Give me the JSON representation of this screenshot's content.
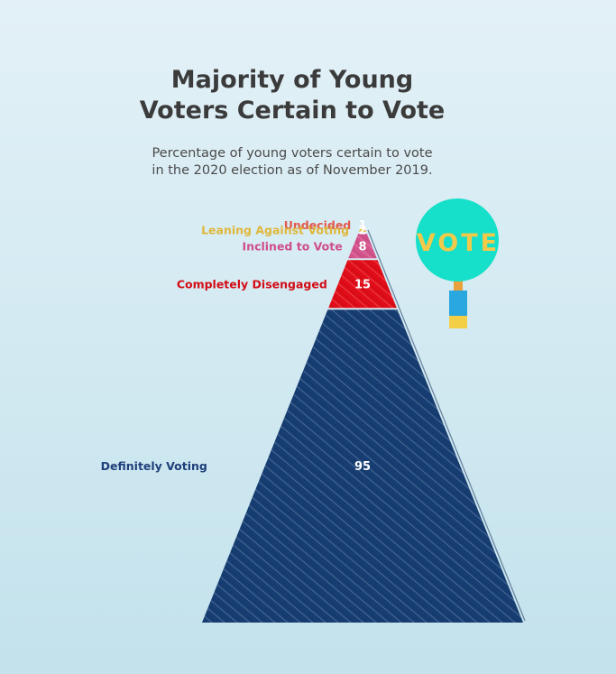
{
  "title": "Majority of Young\nVoters Certain to Vote",
  "subtitle": "Percentage of young voters certain to vote\nin the 2020 election as of November 2019.",
  "sign_text": "VOTE",
  "colors": {
    "sign": "#16e0c9",
    "sign_text": "#f3c94a",
    "handle_top": "#e9a23b",
    "handle_mid": "#29a7df",
    "handle_bottom": "#f2cf44"
  },
  "chart_data": {
    "type": "pyramid",
    "title": "Majority of Young Voters Certain to Vote",
    "subtitle": "Percentage of young voters certain to vote in the 2020 election as of November 2019.",
    "categories": [
      "Undecided",
      "Leaning Against Voting",
      "Inclined to Vote",
      "Completely Disengaged",
      "Definitely Voting"
    ],
    "values": [
      1,
      2,
      8,
      15,
      95
    ],
    "colors": [
      "#ec6b5c",
      "#e4bf3b",
      "#d4538c",
      "#e10d18",
      "#173e73"
    ],
    "label_colors": [
      "#e0584f",
      "#dfb73a",
      "#cf4d8c",
      "#d30c16",
      "#1e3f7a"
    ],
    "legend": "none"
  }
}
